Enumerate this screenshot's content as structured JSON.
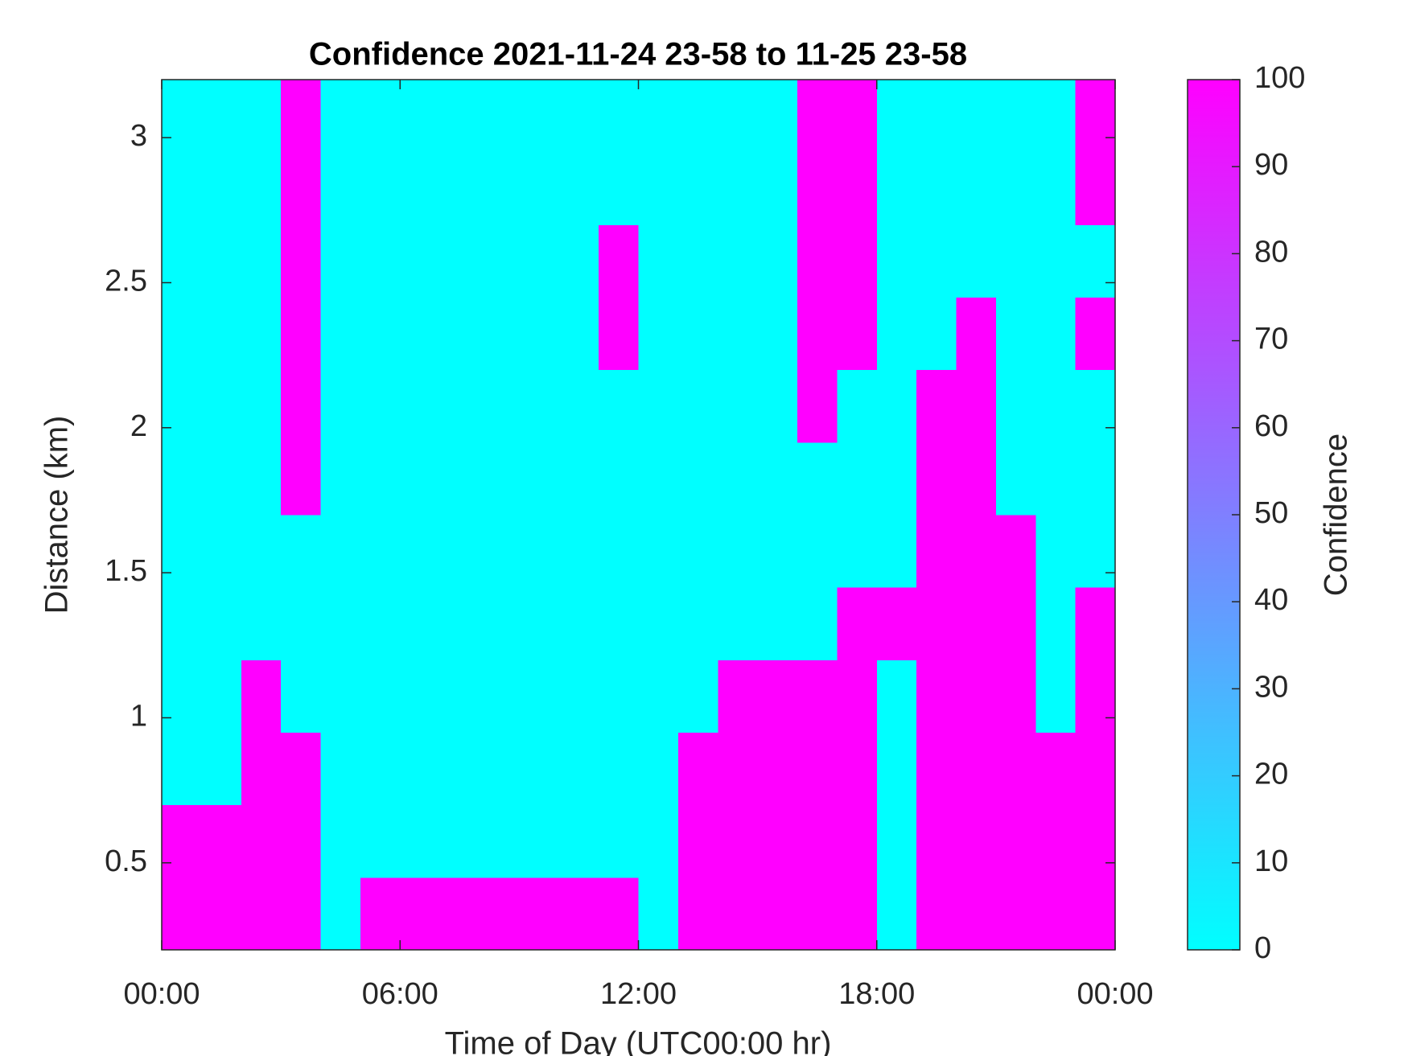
{
  "chart_data": {
    "type": "heatmap",
    "title": "Confidence 2021-11-24 23-58 to 11-25 23-58",
    "xlabel": "Time of Day (UTC00:00 hr)",
    "ylabel": "Distance (km)",
    "colorbar_label": "Confidence",
    "colormap": [
      "#00ffff",
      "#ff00ff"
    ],
    "xlim": [
      0,
      24
    ],
    "xticks": [
      {
        "value": 0,
        "label": "00:00"
      },
      {
        "value": 6,
        "label": "06:00"
      },
      {
        "value": 12,
        "label": "12:00"
      },
      {
        "value": 18,
        "label": "18:00"
      },
      {
        "value": 24,
        "label": "00:00"
      }
    ],
    "ylim": [
      0.2,
      3.2
    ],
    "yticks": [
      0.5,
      1,
      1.5,
      2,
      2.5,
      3
    ],
    "clim": [
      0,
      100
    ],
    "cticks": [
      0,
      10,
      20,
      30,
      40,
      50,
      60,
      70,
      80,
      90,
      100
    ],
    "x_bins": [
      0,
      1,
      2,
      3,
      4,
      5,
      6,
      7,
      8,
      9,
      10,
      11,
      12,
      13,
      14,
      15,
      16,
      17,
      18,
      19,
      20,
      21,
      22,
      23,
      24
    ],
    "y_bins": [
      0.2,
      0.45,
      0.7,
      0.95,
      1.2,
      1.45,
      1.7,
      1.95,
      2.2,
      2.45,
      2.7,
      2.95,
      3.2
    ],
    "z": [
      [
        100,
        100,
        100,
        100,
        0,
        100,
        100,
        100,
        100,
        100,
        100,
        100,
        0,
        100,
        100,
        100,
        100,
        100,
        0,
        100,
        100,
        100,
        100,
        100
      ],
      [
        100,
        100,
        100,
        100,
        0,
        0,
        0,
        0,
        0,
        0,
        0,
        0,
        0,
        100,
        100,
        100,
        100,
        100,
        0,
        100,
        100,
        100,
        100,
        100
      ],
      [
        0,
        0,
        100,
        100,
        0,
        0,
        0,
        0,
        0,
        0,
        0,
        0,
        0,
        100,
        100,
        100,
        100,
        100,
        0,
        100,
        100,
        100,
        100,
        100
      ],
      [
        0,
        0,
        100,
        0,
        0,
        0,
        0,
        0,
        0,
        0,
        0,
        0,
        0,
        0,
        100,
        100,
        100,
        100,
        0,
        100,
        100,
        100,
        0,
        100
      ],
      [
        0,
        0,
        0,
        0,
        0,
        0,
        0,
        0,
        0,
        0,
        0,
        0,
        0,
        0,
        0,
        0,
        0,
        100,
        100,
        100,
        100,
        100,
        0,
        100
      ],
      [
        0,
        0,
        0,
        0,
        0,
        0,
        0,
        0,
        0,
        0,
        0,
        0,
        0,
        0,
        0,
        0,
        0,
        0,
        0,
        100,
        100,
        100,
        0,
        0
      ],
      [
        0,
        0,
        0,
        100,
        0,
        0,
        0,
        0,
        0,
        0,
        0,
        0,
        0,
        0,
        0,
        0,
        0,
        0,
        0,
        100,
        100,
        0,
        0,
        0
      ],
      [
        0,
        0,
        0,
        100,
        0,
        0,
        0,
        0,
        0,
        0,
        0,
        0,
        0,
        0,
        0,
        0,
        100,
        0,
        0,
        100,
        100,
        0,
        0,
        0
      ],
      [
        0,
        0,
        0,
        100,
        0,
        0,
        0,
        0,
        0,
        0,
        0,
        100,
        0,
        0,
        0,
        0,
        100,
        100,
        0,
        0,
        100,
        0,
        0,
        100
      ],
      [
        0,
        0,
        0,
        100,
        0,
        0,
        0,
        0,
        0,
        0,
        0,
        100,
        0,
        0,
        0,
        0,
        100,
        100,
        0,
        0,
        0,
        0,
        0,
        0
      ],
      [
        0,
        0,
        0,
        100,
        0,
        0,
        0,
        0,
        0,
        0,
        0,
        0,
        0,
        0,
        0,
        0,
        100,
        100,
        0,
        0,
        0,
        0,
        0,
        100
      ],
      [
        0,
        0,
        0,
        100,
        0,
        0,
        0,
        0,
        0,
        0,
        0,
        0,
        0,
        0,
        0,
        0,
        100,
        100,
        0,
        0,
        0,
        0,
        0,
        100
      ]
    ]
  }
}
